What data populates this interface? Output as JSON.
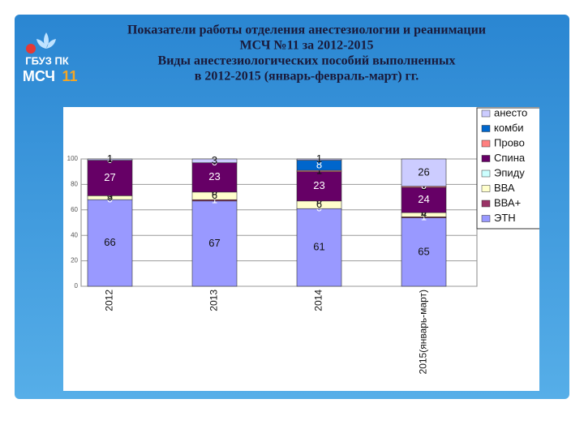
{
  "header": {
    "title_lines": [
      "Показатели работы отделения анестезиологии и реанимации",
      "МСЧ №11 за 2012-2015",
      "Виды анестезиологических пособий выполненных",
      "в 2012-2015 (январь-февраль-март) гг."
    ],
    "logo": {
      "line1": "ГБУЗ ПК",
      "line2": "МСЧ",
      "line3": "11"
    }
  },
  "chart_data": {
    "type": "bar",
    "stacking": "percent",
    "categories": [
      "2012",
      "2013",
      "2014",
      "2015(январь-март)"
    ],
    "series": [
      {
        "name": "ЭТН",
        "color": "#9999ff",
        "values": [
          66,
          67,
          61,
          65
        ]
      },
      {
        "name": "ВВА+",
        "color": "#993366",
        "values": [
          0,
          1,
          0,
          1
        ]
      },
      {
        "name": "ВВА",
        "color": "#ffffcc",
        "values": [
          3,
          6,
          6,
          4
        ]
      },
      {
        "name": "Эпиду",
        "color": "#ccffff",
        "values": [
          0,
          0,
          0,
          0
        ]
      },
      {
        "name": "Спина",
        "color": "#660066",
        "values": [
          27,
          23,
          23,
          24
        ]
      },
      {
        "name": "Прово",
        "color": "#ff8080",
        "values": [
          0,
          0,
          1,
          1
        ]
      },
      {
        "name": "комби",
        "color": "#0066cc",
        "values": [
          0,
          0,
          8,
          0
        ]
      },
      {
        "name": "анесто",
        "color": "#ccccff",
        "values": [
          1,
          3,
          1,
          26
        ]
      }
    ],
    "ylim": [
      0,
      100
    ],
    "yticks": [
      0,
      20,
      40,
      60,
      80,
      100
    ],
    "grid": true
  }
}
